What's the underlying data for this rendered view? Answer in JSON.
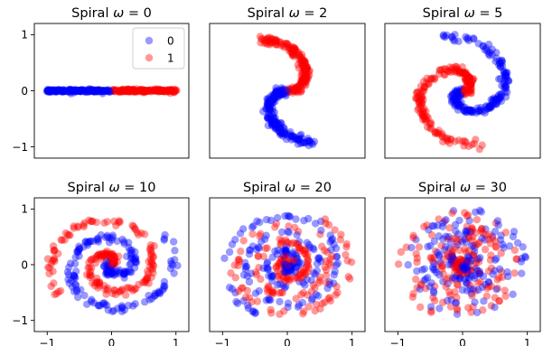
{
  "chart_data": {
    "type": "scatter",
    "layout": {
      "rows": 2,
      "cols": 3
    },
    "xlim": [
      -1.2,
      1.2
    ],
    "ylim": [
      -1.2,
      1.2
    ],
    "x_ticks": [
      -1,
      0,
      1
    ],
    "y_ticks": [
      -1,
      0,
      1
    ],
    "x_tick_labels": [
      "−1",
      "0",
      "1"
    ],
    "y_tick_labels": [
      "−1",
      "0",
      "1"
    ],
    "grid": false,
    "legend": {
      "placement": "upper-right",
      "panel": 0,
      "entries": [
        "0",
        "1"
      ]
    },
    "series_colors": {
      "0": "#0000ff",
      "1": "#ff0000"
    },
    "point_alpha": 0.4,
    "points_per_class": 180,
    "panels": [
      {
        "title_prefix": "Spiral ",
        "omega_symbol": "ω",
        "title_eq": " = 0",
        "omega": 0
      },
      {
        "title_prefix": "Spiral ",
        "omega_symbol": "ω",
        "title_eq": " = 2",
        "omega": 2
      },
      {
        "title_prefix": "Spiral ",
        "omega_symbol": "ω",
        "title_eq": " = 5",
        "omega": 5
      },
      {
        "title_prefix": "Spiral ",
        "omega_symbol": "ω",
        "title_eq": " = 10",
        "omega": 10
      },
      {
        "title_prefix": "Spiral ",
        "omega_symbol": "ω",
        "title_eq": " = 20",
        "omega": 20
      },
      {
        "title_prefix": "Spiral ",
        "omega_symbol": "ω",
        "title_eq": " = 30",
        "omega": 30
      }
    ]
  }
}
